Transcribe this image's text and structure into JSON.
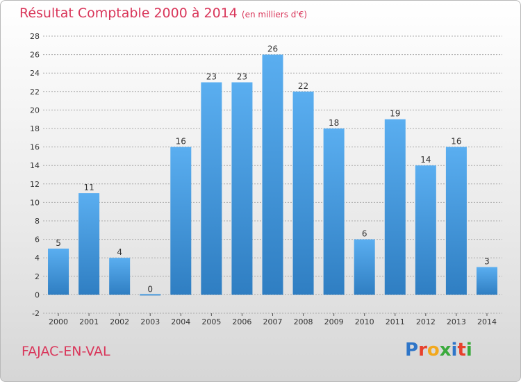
{
  "chart_data": {
    "type": "bar",
    "title": "Résultat Comptable 2000 à 2014",
    "unit_note": "(en milliers d'€)",
    "categories": [
      "2000",
      "2001",
      "2002",
      "2003",
      "2004",
      "2005",
      "2006",
      "2007",
      "2008",
      "2009",
      "2010",
      "2011",
      "2012",
      "2013",
      "2014"
    ],
    "values": [
      5,
      11,
      4,
      0,
      16,
      23,
      23,
      26,
      22,
      18,
      6,
      19,
      14,
      16,
      3
    ],
    "ylim": [
      -2,
      28
    ],
    "yticks": [
      -2,
      0,
      2,
      4,
      6,
      8,
      10,
      12,
      14,
      16,
      18,
      20,
      22,
      24,
      26,
      28
    ],
    "grid": true,
    "bar_color": "#4a9fdf",
    "grid_color": "#aaaaaa"
  },
  "footer": {
    "location": "FAJAC-EN-VAL",
    "logo_letters": [
      "P",
      "r",
      "o",
      "x",
      "i",
      "t",
      "i"
    ],
    "logo_colors": [
      "#2e75c8",
      "#e8412c",
      "#f2a81d",
      "#3aaa3c",
      "#2e75c8",
      "#e8412c",
      "#3aaa3c"
    ]
  }
}
